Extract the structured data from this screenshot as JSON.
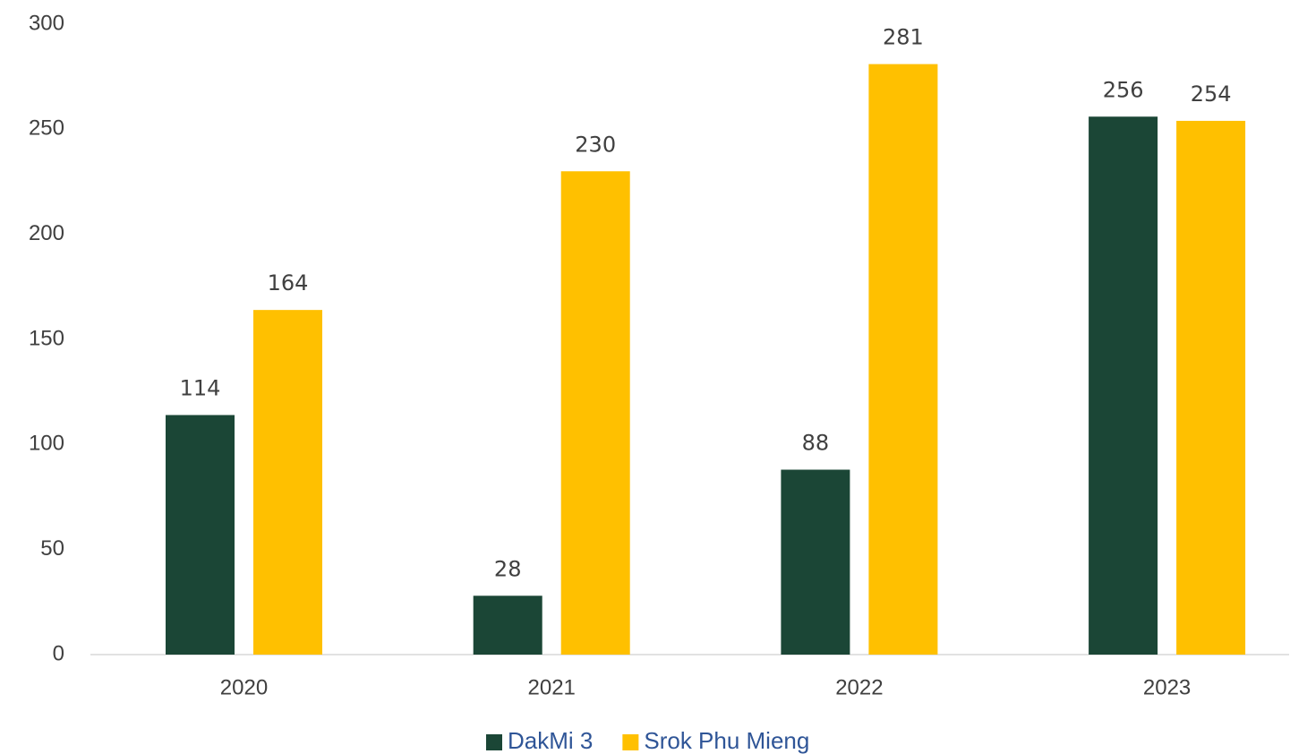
{
  "chart_data": {
    "type": "bar",
    "categories": [
      "2020",
      "2021",
      "2022",
      "2023"
    ],
    "series": [
      {
        "name": "DakMi 3",
        "color": "#1b4636",
        "values": [
          114,
          28,
          88,
          256
        ]
      },
      {
        "name": "Srok Phu Mieng",
        "color": "#ffc000",
        "values": [
          164,
          230,
          281,
          254
        ]
      }
    ],
    "ylim": [
      0,
      300
    ],
    "yticks": [
      0,
      50,
      100,
      150,
      200,
      250,
      300
    ],
    "grid": false,
    "legend": "bottom"
  }
}
